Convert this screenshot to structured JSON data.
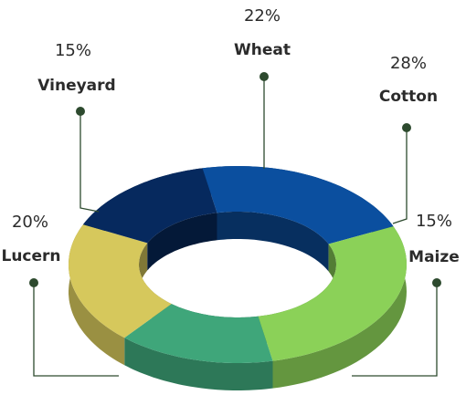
{
  "chart_data": {
    "type": "donut",
    "categories": [
      "Wheat",
      "Cotton",
      "Maize",
      "Lucern",
      "Vineyard"
    ],
    "values": [
      22,
      28,
      15,
      20,
      15
    ],
    "value_labels": [
      "22%",
      "28%",
      "15%",
      "20%",
      "15%"
    ],
    "colors": [
      "#0b4f9f",
      "#8bd158",
      "#3fa67a",
      "#d6c85c",
      "#06295e"
    ]
  }
}
